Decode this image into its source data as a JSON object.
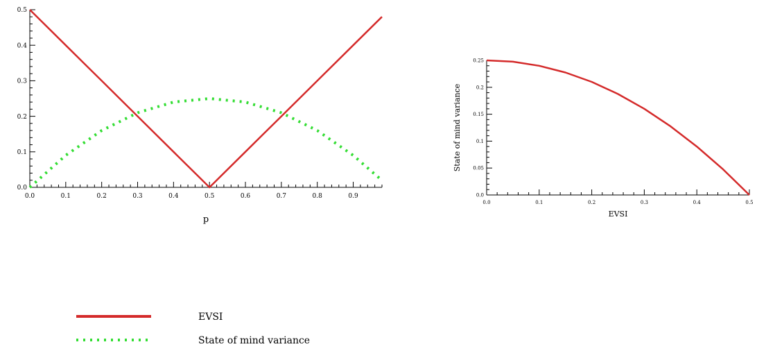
{
  "chart_data": [
    {
      "type": "line",
      "xlabel": "p",
      "ylabel": "",
      "xlim": [
        0,
        0.98
      ],
      "ylim": [
        0,
        0.5
      ],
      "xticks": [
        "0.0",
        "0.1",
        "0.2",
        "0.3",
        "0.4",
        "0.5",
        "0.6",
        "0.7",
        "0.8",
        "0.9"
      ],
      "yticks": [
        "0.0",
        "0.1",
        "0.2",
        "0.3",
        "0.4",
        "0.5"
      ],
      "series": [
        {
          "name": "EVSI",
          "style": "solid",
          "color": "#d42a2a",
          "x": [
            0.0,
            0.1,
            0.2,
            0.3,
            0.4,
            0.5,
            0.6,
            0.7,
            0.8,
            0.9,
            0.98
          ],
          "y": [
            0.5,
            0.4,
            0.3,
            0.2,
            0.1,
            0.0,
            0.1,
            0.2,
            0.3,
            0.4,
            0.48
          ]
        },
        {
          "name": "State of mind variance",
          "style": "dotted",
          "color": "#33dd33",
          "x": [
            0.0,
            0.1,
            0.2,
            0.3,
            0.4,
            0.5,
            0.6,
            0.7,
            0.8,
            0.9,
            0.98
          ],
          "y": [
            0.0,
            0.09,
            0.16,
            0.21,
            0.24,
            0.25,
            0.24,
            0.21,
            0.16,
            0.09,
            0.0196
          ]
        }
      ]
    },
    {
      "type": "line",
      "xlabel": "EVSI",
      "ylabel": "State of mind variance",
      "xlim": [
        0,
        0.5
      ],
      "ylim": [
        0,
        0.25
      ],
      "xticks": [
        "0.0",
        "0.1",
        "0.2",
        "0.3",
        "0.4",
        "0.5"
      ],
      "yticks": [
        "0.0",
        "0.05",
        "0.1",
        "0.15",
        "0.2",
        "0.25"
      ],
      "series": [
        {
          "name": "",
          "style": "solid",
          "color": "#d42a2a",
          "x": [
            0.0,
            0.05,
            0.1,
            0.15,
            0.2,
            0.25,
            0.3,
            0.35,
            0.4,
            0.45,
            0.5
          ],
          "y": [
            0.25,
            0.2475,
            0.24,
            0.2275,
            0.21,
            0.1875,
            0.16,
            0.1275,
            0.09,
            0.0475,
            0.0
          ]
        }
      ]
    }
  ],
  "legend": {
    "items": [
      {
        "label": "EVSI",
        "style": "solid",
        "color": "#d42a2a"
      },
      {
        "label": "State of mind variance",
        "style": "dotted",
        "color": "#33dd33"
      }
    ]
  }
}
